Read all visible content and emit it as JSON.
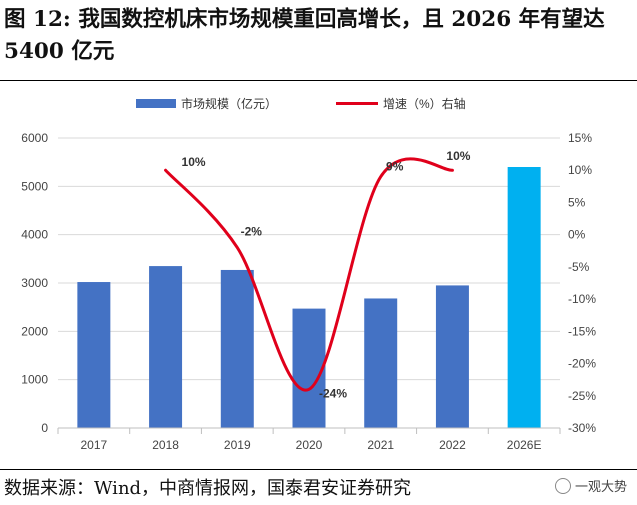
{
  "title": "图 12: 我国数控机床市场规模重回高增长，且 2026 年有望达 5400 亿元",
  "source": "数据来源：Wind，中商情报网，国泰君安证券研究",
  "watermark": "一观大势",
  "chart_data": {
    "type": "bar+line",
    "categories": [
      "2017",
      "2018",
      "2019",
      "2020",
      "2021",
      "2022",
      "2026E"
    ],
    "series": [
      {
        "name": "市场规模（亿元）",
        "type": "bar",
        "axis": "left",
        "values": [
          3020,
          3350,
          3270,
          2470,
          2680,
          2950,
          5400
        ],
        "colors": [
          "#4472C4",
          "#4472C4",
          "#4472C4",
          "#4472C4",
          "#4472C4",
          "#4472C4",
          "#00B0F0"
        ]
      },
      {
        "name": "增速（%）右轴",
        "type": "line",
        "axis": "right",
        "color": "#E0001B",
        "values": [
          null,
          10,
          -2,
          -24,
          9,
          10,
          null
        ],
        "labels": [
          "",
          "10%",
          "-2%",
          "-24%",
          "9%",
          "10%",
          ""
        ]
      }
    ],
    "left_axis": {
      "min": 0,
      "max": 6000,
      "ticks": [
        0,
        1000,
        2000,
        3000,
        4000,
        5000,
        6000
      ]
    },
    "right_axis": {
      "min": -30,
      "max": 15,
      "ticks": [
        "-30%",
        "-25%",
        "-20%",
        "-15%",
        "-10%",
        "-5%",
        "0%",
        "5%",
        "10%",
        "15%"
      ]
    },
    "legend_position": "top-center"
  }
}
